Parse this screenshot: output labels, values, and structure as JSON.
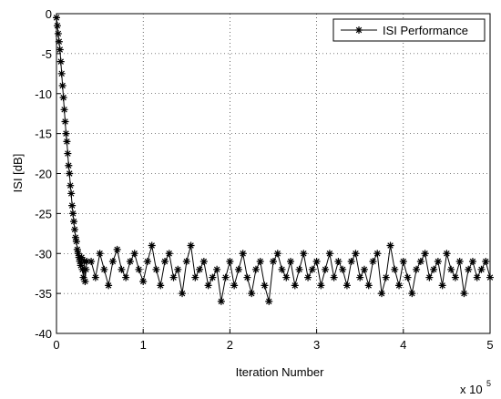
{
  "chart_data": {
    "type": "line",
    "xlabel": "Iteration Number",
    "ylabel": "ISI [dB]",
    "x_multiplier": "x 10",
    "x_multiplier_exponent": "5",
    "xlim": [
      0,
      5
    ],
    "xticks": [
      0,
      1,
      2,
      3,
      4,
      5
    ],
    "ylim": [
      -40,
      0
    ],
    "yticks": [
      -40,
      -35,
      -30,
      -25,
      -20,
      -15,
      -10,
      -5,
      0
    ],
    "grid": true,
    "legend": "top-right",
    "x": [
      0,
      0.01,
      0.02,
      0.03,
      0.04,
      0.05,
      0.06,
      0.07,
      0.08,
      0.09,
      0.1,
      0.11,
      0.12,
      0.13,
      0.14,
      0.15,
      0.16,
      0.17,
      0.18,
      0.19,
      0.2,
      0.21,
      0.22,
      0.23,
      0.24,
      0.25,
      0.26,
      0.27,
      0.28,
      0.29,
      0.3,
      0.31,
      0.32,
      0.33,
      0.34,
      0.35,
      0.4,
      0.45,
      0.5,
      0.55,
      0.6,
      0.65,
      0.7,
      0.75,
      0.8,
      0.85,
      0.9,
      0.95,
      1,
      1.05,
      1.1,
      1.15,
      1.2,
      1.25,
      1.3,
      1.35,
      1.4,
      1.45,
      1.5,
      1.55,
      1.6,
      1.65,
      1.7,
      1.75,
      1.8,
      1.85,
      1.9,
      1.95,
      2,
      2.05,
      2.1,
      2.15,
      2.2,
      2.25,
      2.3,
      2.35,
      2.4,
      2.45,
      2.5,
      2.55,
      2.6,
      2.65,
      2.7,
      2.75,
      2.8,
      2.85,
      2.9,
      2.95,
      3,
      3.05,
      3.1,
      3.15,
      3.2,
      3.25,
      3.3,
      3.35,
      3.4,
      3.45,
      3.5,
      3.55,
      3.6,
      3.65,
      3.7,
      3.75,
      3.8,
      3.85,
      3.9,
      3.95,
      4,
      4.05,
      4.1,
      4.15,
      4.2,
      4.25,
      4.3,
      4.35,
      4.4,
      4.45,
      4.5,
      4.55,
      4.6,
      4.65,
      4.7,
      4.75,
      4.8,
      4.85,
      4.9,
      4.95,
      5
    ],
    "series": [
      {
        "name": "ISI Performance",
        "color": "#000000",
        "values": [
          -0.5,
          -1.5,
          -2.5,
          -3.5,
          -4.5,
          -6,
          -7.5,
          -9,
          -10.5,
          -12,
          -13.5,
          -15,
          -16,
          -17.5,
          -19,
          -20,
          -21.5,
          -22.5,
          -24,
          -25,
          -26,
          -27,
          -28,
          -28.5,
          -29.5,
          -30,
          -30.5,
          -31,
          -31.5,
          -30.5,
          -32,
          -33,
          -31,
          -33.5,
          -32,
          -31,
          -31,
          -33,
          -30,
          -32,
          -34,
          -31,
          -29.5,
          -32,
          -33,
          -31,
          -30,
          -32,
          -33.5,
          -31,
          -29,
          -32,
          -34,
          -31,
          -30,
          -33,
          -32,
          -35,
          -31,
          -29,
          -33,
          -32,
          -31,
          -34,
          -33,
          -32,
          -36,
          -33,
          -31,
          -34,
          -32,
          -30,
          -33,
          -35,
          -32,
          -31,
          -34,
          -36,
          -31,
          -30,
          -32,
          -33,
          -31,
          -34,
          -32,
          -30,
          -33,
          -32,
          -31,
          -34,
          -32,
          -30,
          -33,
          -31,
          -32,
          -34,
          -31,
          -30,
          -33,
          -32,
          -34,
          -31,
          -30,
          -35,
          -33,
          -29,
          -32,
          -34,
          -31,
          -33,
          -35,
          -32,
          -31,
          -30,
          -33,
          -32,
          -31,
          -34,
          -30,
          -32,
          -33,
          -31,
          -35,
          -32,
          -31,
          -33,
          -32,
          -31,
          -33
        ]
      }
    ]
  }
}
